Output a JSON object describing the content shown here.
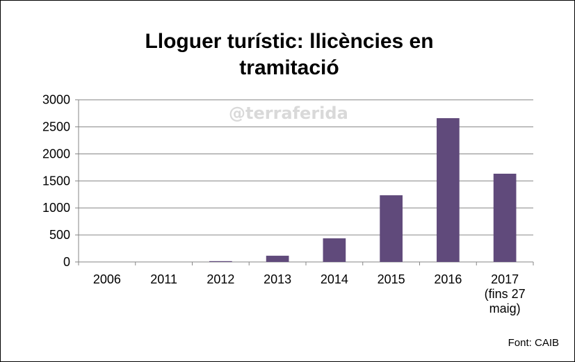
{
  "chart_data": {
    "type": "bar",
    "title": "Lloguer turístic: llicències en tramitació",
    "categories": [
      "2006",
      "2011",
      "2012",
      "2013",
      "2014",
      "2015",
      "2016",
      "2017 (fins 27 maig)"
    ],
    "category_lines": [
      [
        "2006"
      ],
      [
        "2011"
      ],
      [
        "2012"
      ],
      [
        "2013"
      ],
      [
        "2014"
      ],
      [
        "2015"
      ],
      [
        "2016"
      ],
      [
        "2017",
        "(fins 27",
        "maig)"
      ]
    ],
    "values": [
      0,
      0,
      15,
      115,
      437,
      1234,
      2661,
      1633
    ],
    "ylim": [
      0,
      3000
    ],
    "yticks": [
      0,
      500,
      1000,
      1500,
      2000,
      2500,
      3000
    ],
    "grid": true,
    "bar_color": "#604a7b",
    "watermark": "@terraferida",
    "source": "Font: CAIB"
  }
}
